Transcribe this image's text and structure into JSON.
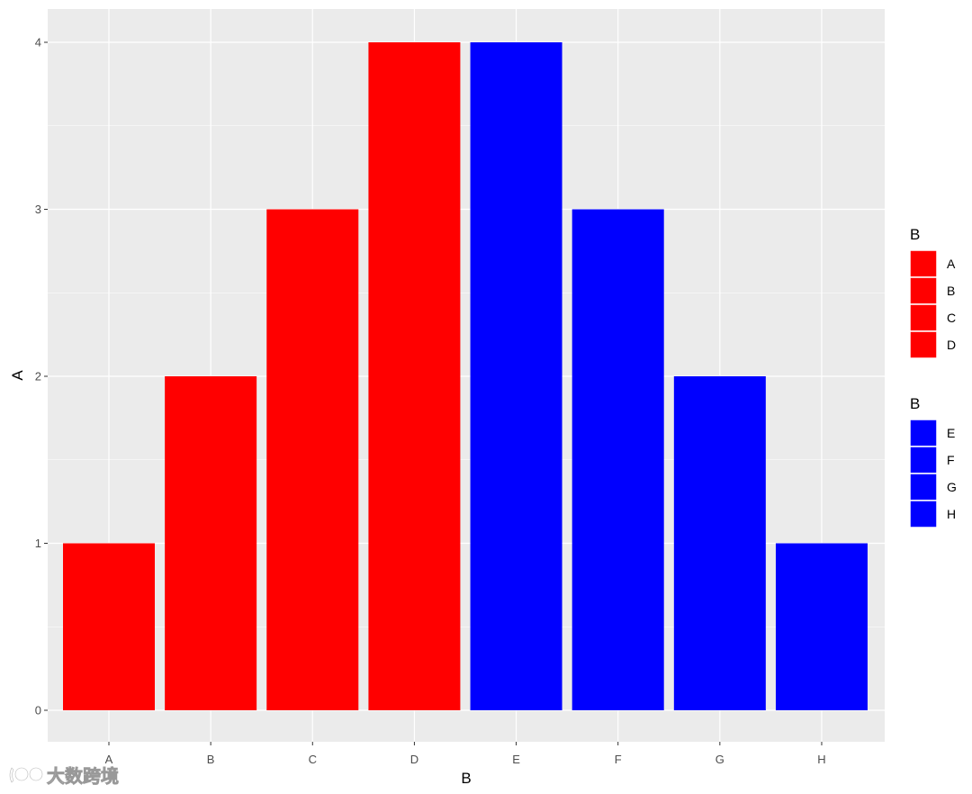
{
  "chart_data": {
    "type": "bar",
    "title": "",
    "xlabel": "B",
    "ylabel": "A",
    "categories": [
      "A",
      "B",
      "C",
      "D",
      "E",
      "F",
      "G",
      "H"
    ],
    "values": [
      1,
      2,
      3,
      4,
      4,
      3,
      2,
      1
    ],
    "bar_colors": [
      "#ff0000",
      "#ff0000",
      "#ff0000",
      "#ff0000",
      "#0000ff",
      "#0000ff",
      "#0000ff",
      "#0000ff"
    ],
    "ylim": [
      0,
      4
    ],
    "y_ticks": [
      0,
      1,
      2,
      3,
      4
    ],
    "grid": true,
    "panel_background": "#ebebeb",
    "grid_color": "#ffffff",
    "legend_position": "right",
    "legends": [
      {
        "title": "B",
        "color": "#ff0000",
        "items": [
          "A",
          "B",
          "C",
          "D"
        ]
      },
      {
        "title": "B",
        "color": "#0000ff",
        "items": [
          "E",
          "F",
          "G",
          "H"
        ]
      }
    ]
  },
  "watermark": {
    "text": "大数跨境",
    "icon": "logo-icon"
  }
}
